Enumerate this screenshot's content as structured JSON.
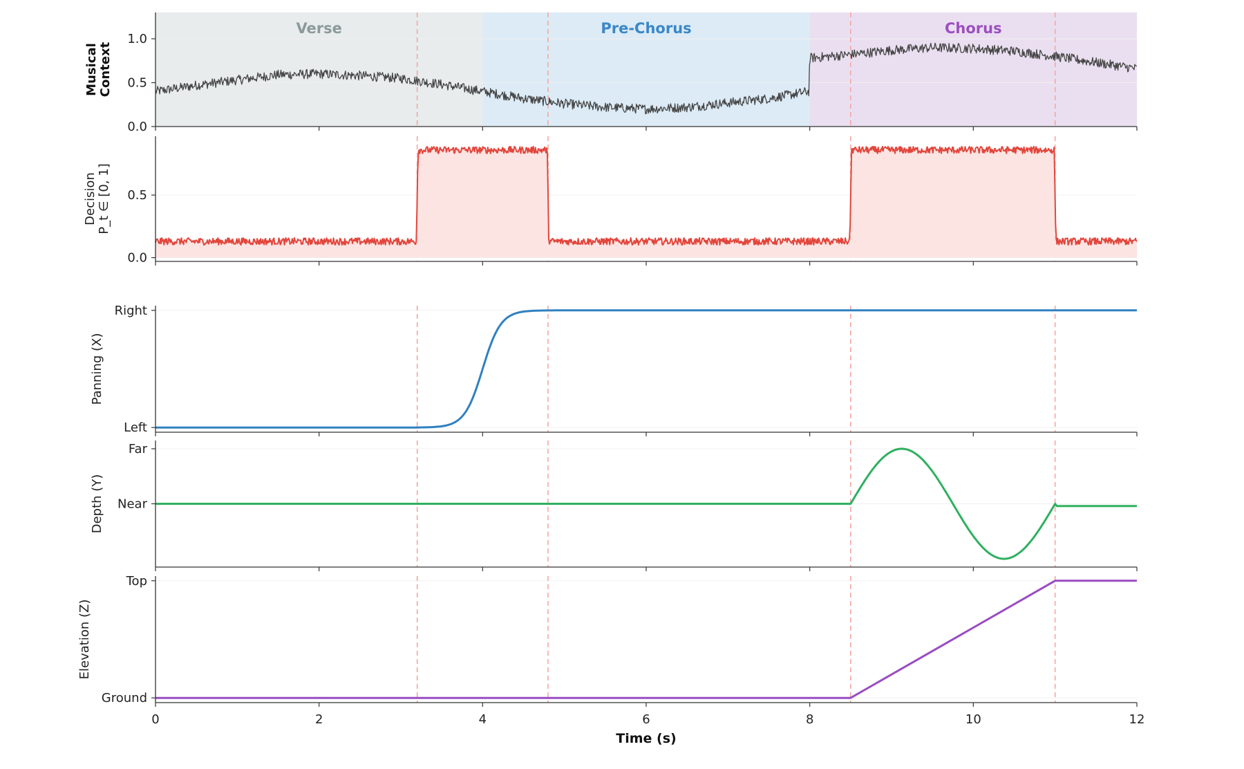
{
  "chart_data": {
    "type": "line",
    "x_axis": {
      "label": "Time (s)",
      "range": [
        0,
        12
      ],
      "ticks": [
        0,
        2,
        4,
        6,
        8,
        10,
        12
      ],
      "tick_labels": [
        "0",
        "2",
        "4",
        "6",
        "8",
        "10",
        "12"
      ]
    },
    "decision_change_times": [
      3.2,
      4.8,
      8.5,
      11.0
    ],
    "segments": [
      {
        "label": "Verse",
        "start": 0,
        "end": 4,
        "color": "#8c9a9a",
        "fill": "#e8eced"
      },
      {
        "label": "Pre-Chorus",
        "start": 4,
        "end": 8,
        "color": "#3a87c8",
        "fill": "#dcebf6"
      },
      {
        "label": "Chorus",
        "start": 8,
        "end": 12,
        "color": "#9b4fbf",
        "fill": "#eadff0"
      }
    ],
    "panels": [
      {
        "id": "musical-context",
        "ylabel_lines": [
          "Musical",
          "Context"
        ],
        "ylabel_bold": true,
        "ylim": [
          0,
          1.3
        ],
        "yticks": [
          0,
          0.5,
          1.0
        ],
        "ytick_labels": [
          "0.0",
          "0.5",
          "1.0"
        ],
        "color": "#444444",
        "noisy": true,
        "series": {
          "name": "",
          "x": [
            0,
            0.5,
            1,
            1.5,
            2,
            2.5,
            3,
            3.5,
            4,
            4.5,
            5,
            5.5,
            6,
            6.5,
            7,
            7.5,
            7.99,
            8.0,
            8.5,
            9,
            9.5,
            10,
            10.5,
            11,
            11.5,
            12
          ],
          "y": [
            0.4,
            0.47,
            0.53,
            0.59,
            0.6,
            0.58,
            0.55,
            0.48,
            0.4,
            0.32,
            0.26,
            0.22,
            0.2,
            0.22,
            0.27,
            0.32,
            0.4,
            0.78,
            0.82,
            0.87,
            0.9,
            0.89,
            0.86,
            0.8,
            0.73,
            0.66
          ]
        }
      },
      {
        "id": "decision",
        "ylabel_lines": [
          "Decision",
          "P_t ∈ [0, 1]"
        ],
        "ylabel_bold": false,
        "ylim": [
          -0.03,
          0.97
        ],
        "yticks": [
          0,
          0.5
        ],
        "ytick_labels": [
          "0.0",
          "0.5"
        ],
        "color": "#e2463c",
        "fill": "#fbe4e2",
        "noisy": true,
        "series": {
          "name": "",
          "x": [
            0,
            3.19,
            3.21,
            4.79,
            4.81,
            8.49,
            8.51,
            10.99,
            11.01,
            12
          ],
          "y": [
            0.13,
            0.13,
            0.86,
            0.86,
            0.13,
            0.13,
            0.86,
            0.86,
            0.13,
            0.13
          ]
        }
      },
      {
        "id": "panning",
        "ylabel_lines": [
          "Panning (X)"
        ],
        "ylabel_bold": false,
        "ylim": [
          -0.04,
          1.04
        ],
        "yticks": [
          0,
          1
        ],
        "ytick_labels": [
          "Left",
          "Right"
        ],
        "color": "#2f80c0",
        "noisy": false,
        "series": {
          "name": "",
          "x": [
            0,
            3.2,
            3.5,
            3.7,
            3.85,
            4.0,
            4.15,
            4.3,
            4.5,
            4.8,
            12
          ],
          "y": [
            0,
            0,
            0.01,
            0.06,
            0.2,
            0.5,
            0.8,
            0.94,
            0.99,
            1,
            1
          ]
        }
      },
      {
        "id": "depth",
        "ylabel_lines": [
          "Depth (Y)"
        ],
        "ylabel_bold": false,
        "ylim": [
          -1.15,
          1.15
        ],
        "yticks": [
          0,
          1
        ],
        "ytick_labels": [
          "Near",
          "Far"
        ],
        "color": "#2eb05f",
        "noisy": false,
        "series": {
          "name": "",
          "x": [
            0,
            8.5,
            8.75,
            9.0,
            9.125,
            9.25,
            9.5,
            9.75,
            10.0,
            10.25,
            10.375,
            10.5,
            10.75,
            11.0,
            12
          ],
          "y": [
            0,
            0,
            0.71,
            1.0,
            1.0,
            0.98,
            0.71,
            0.0,
            -0.71,
            -0.98,
            -1.0,
            -0.95,
            -0.55,
            -0.04,
            -0.04
          ]
        }
      },
      {
        "id": "elevation",
        "ylabel_lines": [
          "Elevation (Z)"
        ],
        "ylabel_bold": false,
        "ylim": [
          -0.04,
          1.04
        ],
        "yticks": [
          0,
          1
        ],
        "ytick_labels": [
          "Ground",
          "Top"
        ],
        "color": "#9a4cc2",
        "noisy": false,
        "series": {
          "name": "",
          "x": [
            0,
            8.5,
            11.0,
            12
          ],
          "y": [
            0,
            0,
            1,
            1
          ]
        }
      }
    ]
  }
}
